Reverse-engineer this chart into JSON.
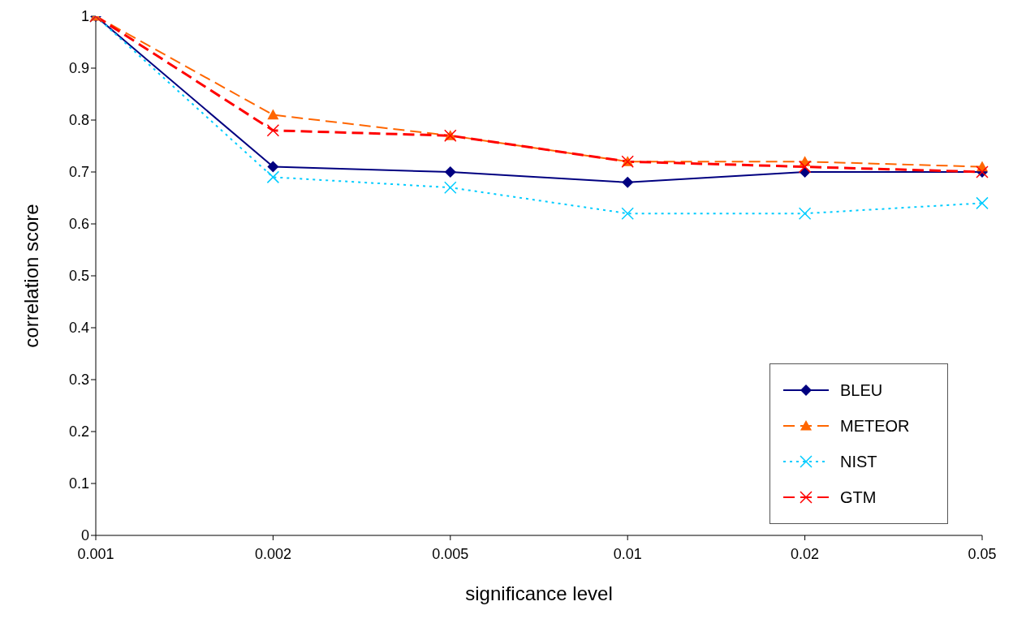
{
  "chart_data": {
    "type": "line",
    "xlabel": "significance level",
    "ylabel": "correlation score",
    "categories": [
      "0.001",
      "0.002",
      "0.005",
      "0.01",
      "0.02",
      "0.05"
    ],
    "series": [
      {
        "name": "BLEU",
        "color": "#000080",
        "marker": "diamond",
        "line_style": "solid",
        "values": [
          1,
          0.71,
          0.7,
          0.68,
          0.7,
          0.7
        ]
      },
      {
        "name": "METEOR",
        "color": "#ff6600",
        "marker": "triangle",
        "line_style": "dashed",
        "values": [
          1,
          0.81,
          0.77,
          0.72,
          0.72,
          0.71
        ]
      },
      {
        "name": "NIST",
        "color": "#00ccff",
        "marker": "cross",
        "line_style": "dotted",
        "values": [
          1,
          0.69,
          0.67,
          0.62,
          0.62,
          0.64
        ]
      },
      {
        "name": "GTM",
        "color": "#ff0000",
        "marker": "cross",
        "line_style": "dashed",
        "values": [
          1,
          0.78,
          0.77,
          0.72,
          0.71,
          0.7
        ]
      }
    ],
    "ylim": [
      0,
      1
    ],
    "yticks": [
      0,
      0.1,
      0.2,
      0.3,
      0.4,
      0.5,
      0.6,
      0.7,
      0.8,
      0.9,
      1
    ],
    "grid": false,
    "legend": "bottom right"
  }
}
